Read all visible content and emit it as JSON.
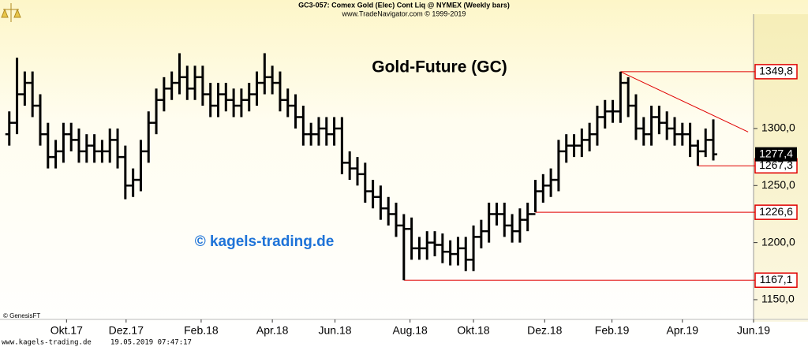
{
  "header": {
    "line1": "GC3-057:  Comex Gold (Elec) Cont Liq @ NYMEX  (Weekly bars)",
    "line2": "www.TradeNavigator.com © 1999-2019"
  },
  "chart_data": {
    "type": "ohlc",
    "title": "Gold-Future (GC)",
    "watermark": "© kagels-trading.de",
    "credit": "© GenesisFT",
    "x": [
      0,
      1,
      2,
      3,
      4,
      5,
      6,
      7,
      8,
      9,
      10,
      11,
      12,
      13,
      14,
      15,
      16,
      17,
      18,
      19,
      20,
      21,
      22,
      23,
      24,
      25,
      26,
      27,
      28,
      29,
      30,
      31,
      32,
      33,
      34,
      35,
      36,
      37,
      38,
      39,
      40,
      41,
      42,
      43,
      44,
      45,
      46,
      47,
      48,
      49,
      50,
      51,
      52,
      53,
      54,
      55,
      56,
      57,
      58,
      59,
      60,
      61,
      62,
      63,
      64,
      65,
      66,
      67,
      68,
      69,
      70,
      71,
      72,
      73,
      74,
      75,
      76,
      77,
      78,
      79,
      80,
      81,
      82,
      83,
      84,
      85,
      86,
      87,
      88,
      89,
      90,
      91
    ],
    "open": [
      1295,
      1305,
      1330,
      1340,
      1320,
      1295,
      1275,
      1280,
      1295,
      1290,
      1280,
      1285,
      1280,
      1280,
      1290,
      1275,
      1250,
      1255,
      1280,
      1305,
      1325,
      1335,
      1340,
      1345,
      1335,
      1345,
      1330,
      1320,
      1330,
      1325,
      1320,
      1325,
      1330,
      1340,
      1345,
      1340,
      1325,
      1320,
      1310,
      1295,
      1295,
      1300,
      1295,
      1300,
      1270,
      1265,
      1260,
      1245,
      1240,
      1230,
      1225,
      1215,
      1212,
      1195,
      1195,
      1200,
      1198,
      1192,
      1190,
      1195,
      1185,
      1205,
      1210,
      1225,
      1225,
      1215,
      1210,
      1220,
      1225,
      1245,
      1250,
      1255,
      1280,
      1285,
      1285,
      1290,
      1295,
      1310,
      1315,
      1315,
      1340,
      1320,
      1300,
      1295,
      1310,
      1305,
      1300,
      1295,
      1295,
      1285,
      1280,
      1290
    ],
    "high": [
      1315,
      1362,
      1350,
      1350,
      1330,
      1305,
      1290,
      1305,
      1305,
      1300,
      1295,
      1295,
      1290,
      1300,
      1300,
      1285,
      1265,
      1290,
      1315,
      1335,
      1345,
      1350,
      1366,
      1355,
      1355,
      1355,
      1340,
      1340,
      1340,
      1335,
      1335,
      1340,
      1350,
      1366,
      1355,
      1350,
      1335,
      1330,
      1320,
      1305,
      1310,
      1310,
      1310,
      1310,
      1280,
      1275,
      1270,
      1255,
      1250,
      1240,
      1235,
      1225,
      1222,
      1205,
      1210,
      1210,
      1208,
      1202,
      1205,
      1205,
      1215,
      1220,
      1235,
      1235,
      1235,
      1225,
      1230,
      1235,
      1255,
      1260,
      1265,
      1290,
      1295,
      1295,
      1300,
      1305,
      1320,
      1325,
      1325,
      1349.8,
      1345,
      1330,
      1310,
      1320,
      1320,
      1315,
      1310,
      1305,
      1305,
      1290,
      1300,
      1308
    ],
    "low": [
      1285,
      1295,
      1320,
      1310,
      1285,
      1265,
      1265,
      1270,
      1280,
      1270,
      1270,
      1270,
      1270,
      1270,
      1265,
      1238,
      1240,
      1245,
      1270,
      1295,
      1315,
      1325,
      1330,
      1325,
      1325,
      1320,
      1310,
      1310,
      1315,
      1310,
      1310,
      1315,
      1320,
      1330,
      1330,
      1315,
      1310,
      1300,
      1285,
      1285,
      1285,
      1285,
      1285,
      1260,
      1255,
      1250,
      1235,
      1230,
      1220,
      1215,
      1205,
      1167.1,
      1185,
      1185,
      1185,
      1188,
      1182,
      1180,
      1180,
      1175,
      1175,
      1195,
      1200,
      1215,
      1205,
      1200,
      1200,
      1210,
      1226.6,
      1235,
      1240,
      1245,
      1270,
      1275,
      1275,
      1280,
      1285,
      1300,
      1305,
      1305,
      1310,
      1290,
      1285,
      1285,
      1295,
      1290,
      1285,
      1285,
      1275,
      1267.3,
      1275,
      1272
    ],
    "close": [
      1305,
      1330,
      1340,
      1320,
      1295,
      1275,
      1280,
      1295,
      1290,
      1280,
      1285,
      1280,
      1280,
      1290,
      1275,
      1250,
      1255,
      1280,
      1305,
      1325,
      1335,
      1340,
      1345,
      1335,
      1345,
      1330,
      1320,
      1330,
      1325,
      1320,
      1325,
      1330,
      1340,
      1345,
      1340,
      1325,
      1320,
      1310,
      1295,
      1295,
      1300,
      1295,
      1300,
      1270,
      1265,
      1260,
      1245,
      1240,
      1230,
      1225,
      1215,
      1212,
      1195,
      1195,
      1200,
      1198,
      1192,
      1190,
      1195,
      1185,
      1205,
      1210,
      1225,
      1225,
      1215,
      1210,
      1220,
      1225,
      1245,
      1250,
      1255,
      1280,
      1285,
      1285,
      1290,
      1295,
      1310,
      1315,
      1315,
      1340,
      1320,
      1300,
      1295,
      1310,
      1305,
      1300,
      1295,
      1295,
      1285,
      1280,
      1290,
      1277.4
    ],
    "close_labels": {
      "91": "1277,4"
    },
    "color": "#000000",
    "xlim": [
      -1.2,
      96.2
    ],
    "xticks": [
      {
        "value": 7.4,
        "label": "Okt.17"
      },
      {
        "value": 15.1,
        "label": "Dez.17"
      },
      {
        "value": 24.8,
        "label": "Feb.18"
      },
      {
        "value": 34,
        "label": "Apr.18"
      },
      {
        "value": 42.1,
        "label": "Jun.18"
      },
      {
        "value": 51.8,
        "label": "Aug.18"
      },
      {
        "value": 60,
        "label": "Okt.18"
      },
      {
        "value": 69.2,
        "label": "Dez.18"
      },
      {
        "value": 77.9,
        "label": "Feb.19"
      },
      {
        "value": 87,
        "label": "Apr.19"
      },
      {
        "value": 96.2,
        "label": "Jun.19"
      }
    ],
    "ylim": [
      1132.7,
      1398.8
    ],
    "yticks": [
      {
        "value": 1150,
        "label": "1150,0"
      },
      {
        "value": 1200,
        "label": "1200,0"
      },
      {
        "value": 1250,
        "label": "1250,0"
      },
      {
        "value": 1300,
        "label": "1300,0"
      }
    ],
    "levels": [
      {
        "value": 1349.8,
        "label": "1349,8",
        "x": 79
      },
      {
        "value": 1267.3,
        "label": "1267,3",
        "x": 89
      },
      {
        "value": 1226.6,
        "label": "1226,6",
        "x": 68
      },
      {
        "value": 1167.1,
        "label": "1167,1",
        "x": 51
      }
    ],
    "level_color": "#e00000",
    "trend_line": {
      "x": [
        79,
        95.5
      ],
      "y": [
        1349.8,
        1297
      ]
    }
  },
  "footer": {
    "site": "www.kagels-trading.de",
    "timestamp": "19.05.2019 07:47:17"
  }
}
